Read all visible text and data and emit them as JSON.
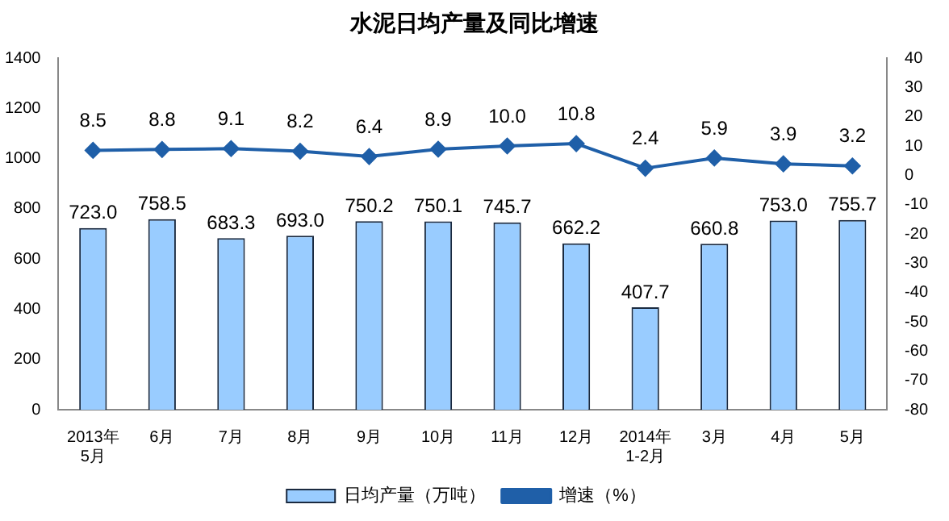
{
  "chart_data": {
    "type": "bar",
    "title": "水泥日均产量及同比增速",
    "categories": [
      "2013年\n5月",
      "6月",
      "7月",
      "8月",
      "9月",
      "10月",
      "11月",
      "12月",
      "2014年\n1-2月",
      "3月",
      "4月",
      "5月"
    ],
    "series": [
      {
        "name": "日均产量（万吨）",
        "color": "#99ccff",
        "values": [
          723.0,
          758.5,
          683.3,
          693.0,
          750.2,
          750.1,
          745.7,
          662.2,
          407.7,
          660.8,
          753.0,
          755.7
        ],
        "value_labels": [
          "723.0",
          "758.5",
          "683.3",
          "693.0",
          "750.2",
          "750.1",
          "745.7",
          "662.2",
          "407.7",
          "660.8",
          "753.0",
          "755.7"
        ]
      },
      {
        "name": "增速（%）",
        "type": "line",
        "axis": "y2",
        "color": "#1f5fa8",
        "values": [
          8.5,
          8.8,
          9.1,
          8.2,
          6.4,
          8.9,
          10.0,
          10.8,
          2.4,
          5.9,
          3.9,
          3.2
        ],
        "value_labels": [
          "8.5",
          "8.8",
          "9.1",
          "8.2",
          "6.4",
          "8.9",
          "10.0",
          "10.8",
          "2.4",
          "5.9",
          "3.9",
          "3.2"
        ]
      }
    ],
    "ylim": [
      0,
      1400
    ],
    "yticks": [
      0,
      200,
      400,
      600,
      800,
      1000,
      1200,
      1400
    ],
    "y2lim": [
      -80,
      40
    ],
    "y2ticks": [
      -80,
      -70,
      -60,
      -50,
      -40,
      -30,
      -20,
      -10,
      0,
      10,
      20,
      30,
      40
    ],
    "grid": false,
    "legend": "bottom",
    "marker": "diamond",
    "line_style": "solid"
  }
}
